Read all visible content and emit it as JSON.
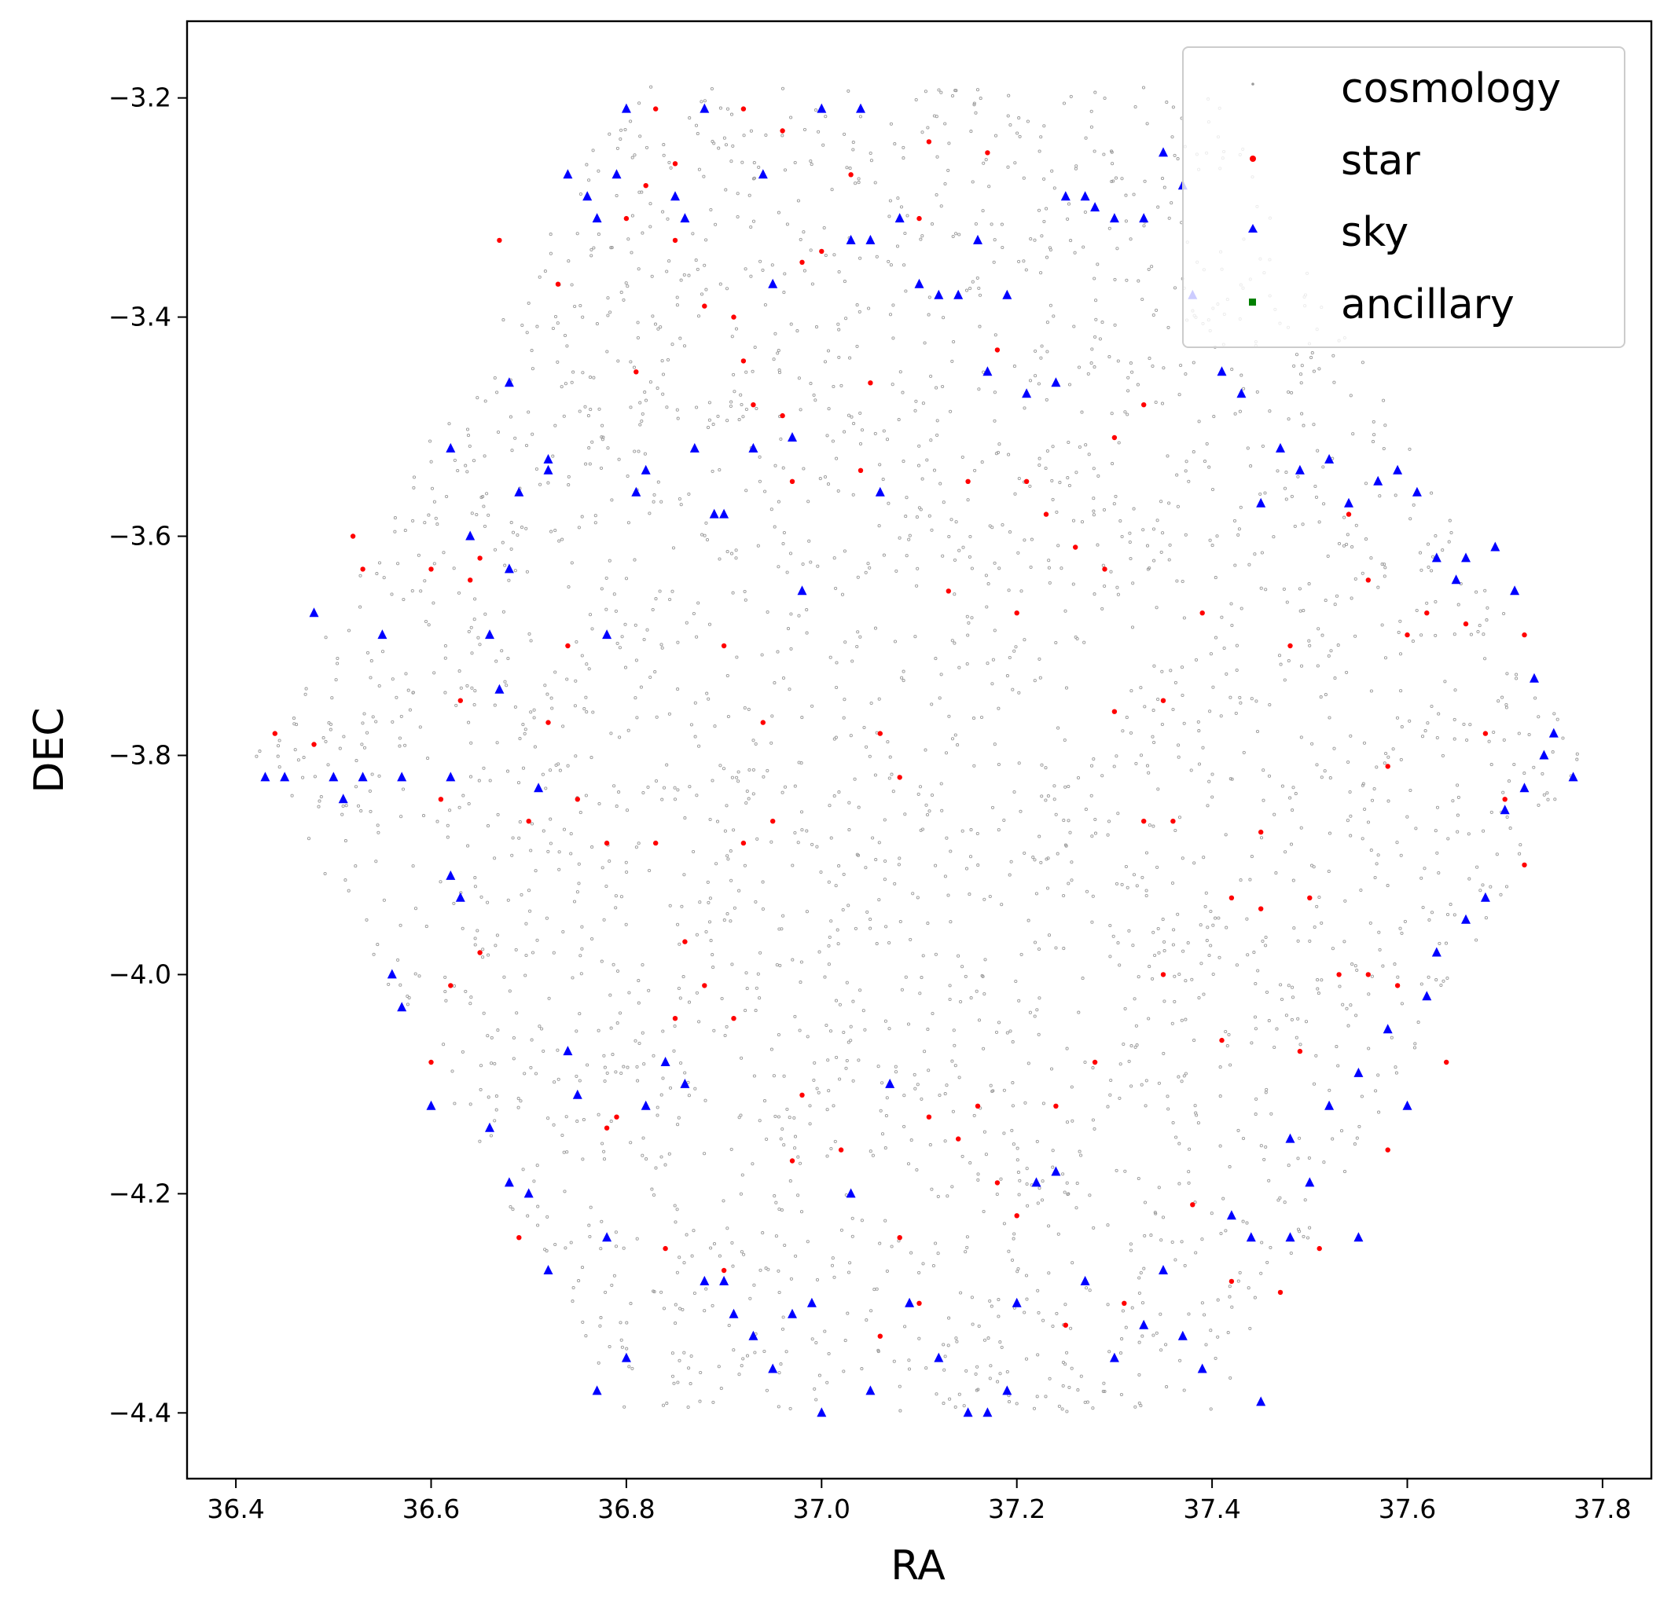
{
  "chart_data": {
    "type": "scatter",
    "title": "",
    "xlabel": "RA",
    "ylabel": "DEC",
    "xlim": [
      36.35,
      37.85
    ],
    "ylim": [
      -4.46,
      -3.13
    ],
    "xticks": [
      36.4,
      36.6,
      36.8,
      37.0,
      37.2,
      37.4,
      37.6,
      37.8
    ],
    "xtick_labels": [
      "36.4",
      "36.6",
      "36.8",
      "37.0",
      "37.2",
      "37.4",
      "37.6",
      "37.8"
    ],
    "yticks": [
      -3.2,
      -3.4,
      -3.6,
      -3.8,
      -4.0,
      -4.2,
      -4.4
    ],
    "ytick_labels": [
      "−3.2",
      "−3.4",
      "−3.6",
      "−3.8",
      "−4.0",
      "−4.2",
      "−4.4"
    ],
    "grid": false,
    "legend_position": "top-right",
    "footprint": {
      "center": [
        37.1,
        -3.8
      ],
      "vertices": [
        [
          36.42,
          -3.8
        ],
        [
          36.8,
          -3.19
        ],
        [
          37.4,
          -3.19
        ],
        [
          37.78,
          -3.8
        ],
        [
          37.4,
          -4.4
        ],
        [
          36.8,
          -4.4
        ]
      ]
    },
    "series": [
      {
        "name": "cosmology",
        "marker": "dot",
        "color": "#9a9a9a",
        "approx_count": 2800
      },
      {
        "name": "star",
        "marker": "circle",
        "color": "#ff0000",
        "approx_count": 240
      },
      {
        "name": "sky",
        "marker": "triangle",
        "color": "#0000ff",
        "approx_count": 480
      },
      {
        "name": "ancillary",
        "marker": "square",
        "color": "#008000",
        "approx_count": 0
      }
    ],
    "points": {
      "star": [
        [
          36.44,
          -3.78
        ],
        [
          36.48,
          -3.79
        ],
        [
          36.52,
          -3.6
        ],
        [
          36.53,
          -3.63
        ],
        [
          36.6,
          -3.63
        ],
        [
          36.61,
          -3.84
        ],
        [
          36.63,
          -3.75
        ],
        [
          36.64,
          -3.64
        ],
        [
          36.65,
          -3.62
        ],
        [
          36.67,
          -3.33
        ],
        [
          36.7,
          -3.86
        ],
        [
          36.72,
          -3.77
        ],
        [
          36.73,
          -3.37
        ],
        [
          36.74,
          -3.7
        ],
        [
          36.75,
          -3.84
        ],
        [
          36.78,
          -3.88
        ],
        [
          36.8,
          -3.31
        ],
        [
          36.81,
          -3.45
        ],
        [
          36.82,
          -3.28
        ],
        [
          36.83,
          -3.21
        ],
        [
          36.85,
          -3.26
        ],
        [
          36.85,
          -3.33
        ],
        [
          36.88,
          -3.39
        ],
        [
          36.9,
          -3.7
        ],
        [
          36.91,
          -3.4
        ],
        [
          36.92,
          -3.21
        ],
        [
          36.92,
          -3.44
        ],
        [
          36.93,
          -3.48
        ],
        [
          36.94,
          -3.77
        ],
        [
          36.96,
          -3.23
        ],
        [
          36.96,
          -3.49
        ],
        [
          36.97,
          -3.55
        ],
        [
          36.98,
          -3.35
        ],
        [
          37.0,
          -3.34
        ],
        [
          37.03,
          -3.27
        ],
        [
          37.04,
          -3.54
        ],
        [
          37.05,
          -3.46
        ],
        [
          37.06,
          -3.78
        ],
        [
          37.08,
          -3.82
        ],
        [
          37.1,
          -3.31
        ],
        [
          37.11,
          -3.24
        ],
        [
          37.13,
          -3.65
        ],
        [
          37.15,
          -3.55
        ],
        [
          37.17,
          -3.25
        ],
        [
          37.18,
          -3.43
        ],
        [
          37.2,
          -3.67
        ],
        [
          37.21,
          -3.55
        ],
        [
          37.23,
          -3.58
        ],
        [
          37.26,
          -3.61
        ],
        [
          37.29,
          -3.63
        ],
        [
          37.3,
          -3.76
        ],
        [
          37.3,
          -3.51
        ],
        [
          37.33,
          -3.48
        ],
        [
          37.35,
          -3.75
        ],
        [
          37.36,
          -3.86
        ],
        [
          37.39,
          -3.67
        ],
        [
          37.42,
          -3.93
        ],
        [
          37.45,
          -3.87
        ],
        [
          37.48,
          -3.7
        ],
        [
          37.5,
          -3.93
        ],
        [
          37.54,
          -3.58
        ],
        [
          37.56,
          -3.64
        ],
        [
          37.58,
          -3.81
        ],
        [
          37.6,
          -3.69
        ],
        [
          37.62,
          -3.67
        ],
        [
          37.66,
          -3.68
        ],
        [
          37.68,
          -3.78
        ],
        [
          37.7,
          -3.84
        ],
        [
          37.72,
          -3.69
        ],
        [
          37.72,
          -3.9
        ],
        [
          36.6,
          -4.08
        ],
        [
          36.62,
          -4.01
        ],
        [
          36.65,
          -3.98
        ],
        [
          36.69,
          -4.24
        ],
        [
          36.78,
          -4.14
        ],
        [
          36.79,
          -4.13
        ],
        [
          36.83,
          -3.88
        ],
        [
          36.84,
          -4.25
        ],
        [
          36.85,
          -4.04
        ],
        [
          36.86,
          -3.97
        ],
        [
          36.88,
          -4.01
        ],
        [
          36.9,
          -4.27
        ],
        [
          36.91,
          -4.04
        ],
        [
          36.92,
          -3.88
        ],
        [
          36.95,
          -3.86
        ],
        [
          36.97,
          -4.17
        ],
        [
          36.98,
          -4.11
        ],
        [
          37.02,
          -4.16
        ],
        [
          37.06,
          -4.33
        ],
        [
          37.08,
          -4.24
        ],
        [
          37.1,
          -4.3
        ],
        [
          37.11,
          -4.13
        ],
        [
          37.14,
          -4.15
        ],
        [
          37.16,
          -4.12
        ],
        [
          37.18,
          -4.19
        ],
        [
          37.2,
          -4.22
        ],
        [
          37.24,
          -4.12
        ],
        [
          37.25,
          -4.32
        ],
        [
          37.28,
          -4.08
        ],
        [
          37.31,
          -4.3
        ],
        [
          37.33,
          -3.86
        ],
        [
          37.35,
          -4.0
        ],
        [
          37.38,
          -4.21
        ],
        [
          37.41,
          -4.06
        ],
        [
          37.42,
          -4.28
        ],
        [
          37.45,
          -3.94
        ],
        [
          37.47,
          -4.29
        ],
        [
          37.49,
          -4.07
        ],
        [
          37.51,
          -4.25
        ],
        [
          37.53,
          -4.0
        ],
        [
          37.58,
          -4.16
        ],
        [
          37.59,
          -4.01
        ],
        [
          37.64,
          -4.08
        ],
        [
          37.56,
          -4.0
        ]
      ],
      "sky": [
        [
          36.43,
          -3.82
        ],
        [
          36.45,
          -3.82
        ],
        [
          36.48,
          -3.67
        ],
        [
          36.5,
          -3.82
        ],
        [
          36.51,
          -3.84
        ],
        [
          36.53,
          -3.82
        ],
        [
          36.55,
          -3.69
        ],
        [
          36.57,
          -3.82
        ],
        [
          36.62,
          -3.52
        ],
        [
          36.62,
          -3.82
        ],
        [
          36.64,
          -3.6
        ],
        [
          36.66,
          -3.69
        ],
        [
          36.67,
          -3.74
        ],
        [
          36.68,
          -3.63
        ],
        [
          36.68,
          -3.46
        ],
        [
          36.69,
          -3.56
        ],
        [
          36.71,
          -3.83
        ],
        [
          36.72,
          -3.53
        ],
        [
          36.72,
          -3.54
        ],
        [
          36.74,
          -3.27
        ],
        [
          36.76,
          -3.29
        ],
        [
          36.77,
          -3.31
        ],
        [
          36.78,
          -3.69
        ],
        [
          36.79,
          -3.27
        ],
        [
          36.8,
          -3.21
        ],
        [
          36.81,
          -3.56
        ],
        [
          36.82,
          -3.54
        ],
        [
          36.85,
          -3.29
        ],
        [
          36.86,
          -3.31
        ],
        [
          36.87,
          -3.52
        ],
        [
          36.88,
          -3.21
        ],
        [
          36.89,
          -3.58
        ],
        [
          36.9,
          -3.58
        ],
        [
          36.93,
          -3.52
        ],
        [
          36.94,
          -3.27
        ],
        [
          36.95,
          -3.37
        ],
        [
          36.97,
          -3.51
        ],
        [
          36.98,
          -3.65
        ],
        [
          37.0,
          -3.21
        ],
        [
          37.03,
          -3.33
        ],
        [
          37.04,
          -3.21
        ],
        [
          37.05,
          -3.33
        ],
        [
          37.06,
          -3.56
        ],
        [
          37.08,
          -3.31
        ],
        [
          37.1,
          -3.37
        ],
        [
          37.12,
          -3.38
        ],
        [
          37.14,
          -3.38
        ],
        [
          37.16,
          -3.33
        ],
        [
          37.17,
          -3.45
        ],
        [
          37.19,
          -3.38
        ],
        [
          37.21,
          -3.47
        ],
        [
          37.24,
          -3.46
        ],
        [
          37.25,
          -3.29
        ],
        [
          37.27,
          -3.29
        ],
        [
          37.28,
          -3.3
        ],
        [
          37.3,
          -3.31
        ],
        [
          37.33,
          -3.31
        ],
        [
          37.35,
          -3.25
        ],
        [
          37.37,
          -3.28
        ],
        [
          37.38,
          -3.38
        ],
        [
          37.41,
          -3.45
        ],
        [
          37.43,
          -3.47
        ],
        [
          37.45,
          -3.57
        ],
        [
          37.47,
          -3.52
        ],
        [
          37.49,
          -3.54
        ],
        [
          37.52,
          -3.53
        ],
        [
          37.54,
          -3.57
        ],
        [
          37.57,
          -3.55
        ],
        [
          37.59,
          -3.54
        ],
        [
          37.61,
          -3.56
        ],
        [
          37.63,
          -3.62
        ],
        [
          37.65,
          -3.64
        ],
        [
          37.66,
          -3.62
        ],
        [
          37.69,
          -3.61
        ],
        [
          37.71,
          -3.65
        ],
        [
          37.73,
          -3.73
        ],
        [
          37.75,
          -3.78
        ],
        [
          37.77,
          -3.82
        ],
        [
          36.56,
          -4.0
        ],
        [
          36.57,
          -4.03
        ],
        [
          36.6,
          -4.12
        ],
        [
          36.62,
          -3.91
        ],
        [
          36.63,
          -3.93
        ],
        [
          36.66,
          -4.14
        ],
        [
          36.68,
          -4.19
        ],
        [
          36.7,
          -4.2
        ],
        [
          36.72,
          -4.27
        ],
        [
          36.74,
          -4.07
        ],
        [
          36.75,
          -4.11
        ],
        [
          36.77,
          -4.38
        ],
        [
          36.78,
          -4.24
        ],
        [
          36.8,
          -4.35
        ],
        [
          36.82,
          -4.12
        ],
        [
          36.84,
          -4.08
        ],
        [
          36.86,
          -4.1
        ],
        [
          36.88,
          -4.28
        ],
        [
          36.9,
          -4.28
        ],
        [
          36.91,
          -4.31
        ],
        [
          36.93,
          -4.33
        ],
        [
          36.95,
          -4.36
        ],
        [
          36.97,
          -4.31
        ],
        [
          36.99,
          -4.3
        ],
        [
          37.0,
          -4.4
        ],
        [
          37.03,
          -4.2
        ],
        [
          37.05,
          -4.38
        ],
        [
          37.07,
          -4.1
        ],
        [
          37.09,
          -4.3
        ],
        [
          37.12,
          -4.35
        ],
        [
          37.15,
          -4.4
        ],
        [
          37.17,
          -4.4
        ],
        [
          37.19,
          -4.38
        ],
        [
          37.2,
          -4.3
        ],
        [
          37.22,
          -4.19
        ],
        [
          37.24,
          -4.18
        ],
        [
          37.27,
          -4.28
        ],
        [
          37.3,
          -4.35
        ],
        [
          37.33,
          -4.32
        ],
        [
          37.35,
          -4.27
        ],
        [
          37.37,
          -4.33
        ],
        [
          37.39,
          -4.36
        ],
        [
          37.42,
          -4.22
        ],
        [
          37.44,
          -4.24
        ],
        [
          37.45,
          -4.39
        ],
        [
          37.48,
          -4.24
        ],
        [
          37.5,
          -4.19
        ],
        [
          37.52,
          -4.12
        ],
        [
          37.55,
          -4.09
        ],
        [
          37.58,
          -4.05
        ],
        [
          37.6,
          -4.12
        ],
        [
          37.62,
          -4.02
        ],
        [
          37.63,
          -3.98
        ],
        [
          37.66,
          -3.95
        ],
        [
          37.68,
          -3.93
        ],
        [
          37.7,
          -3.85
        ],
        [
          37.72,
          -3.83
        ],
        [
          37.74,
          -3.8
        ],
        [
          37.55,
          -4.24
        ],
        [
          37.48,
          -4.15
        ]
      ]
    }
  }
}
